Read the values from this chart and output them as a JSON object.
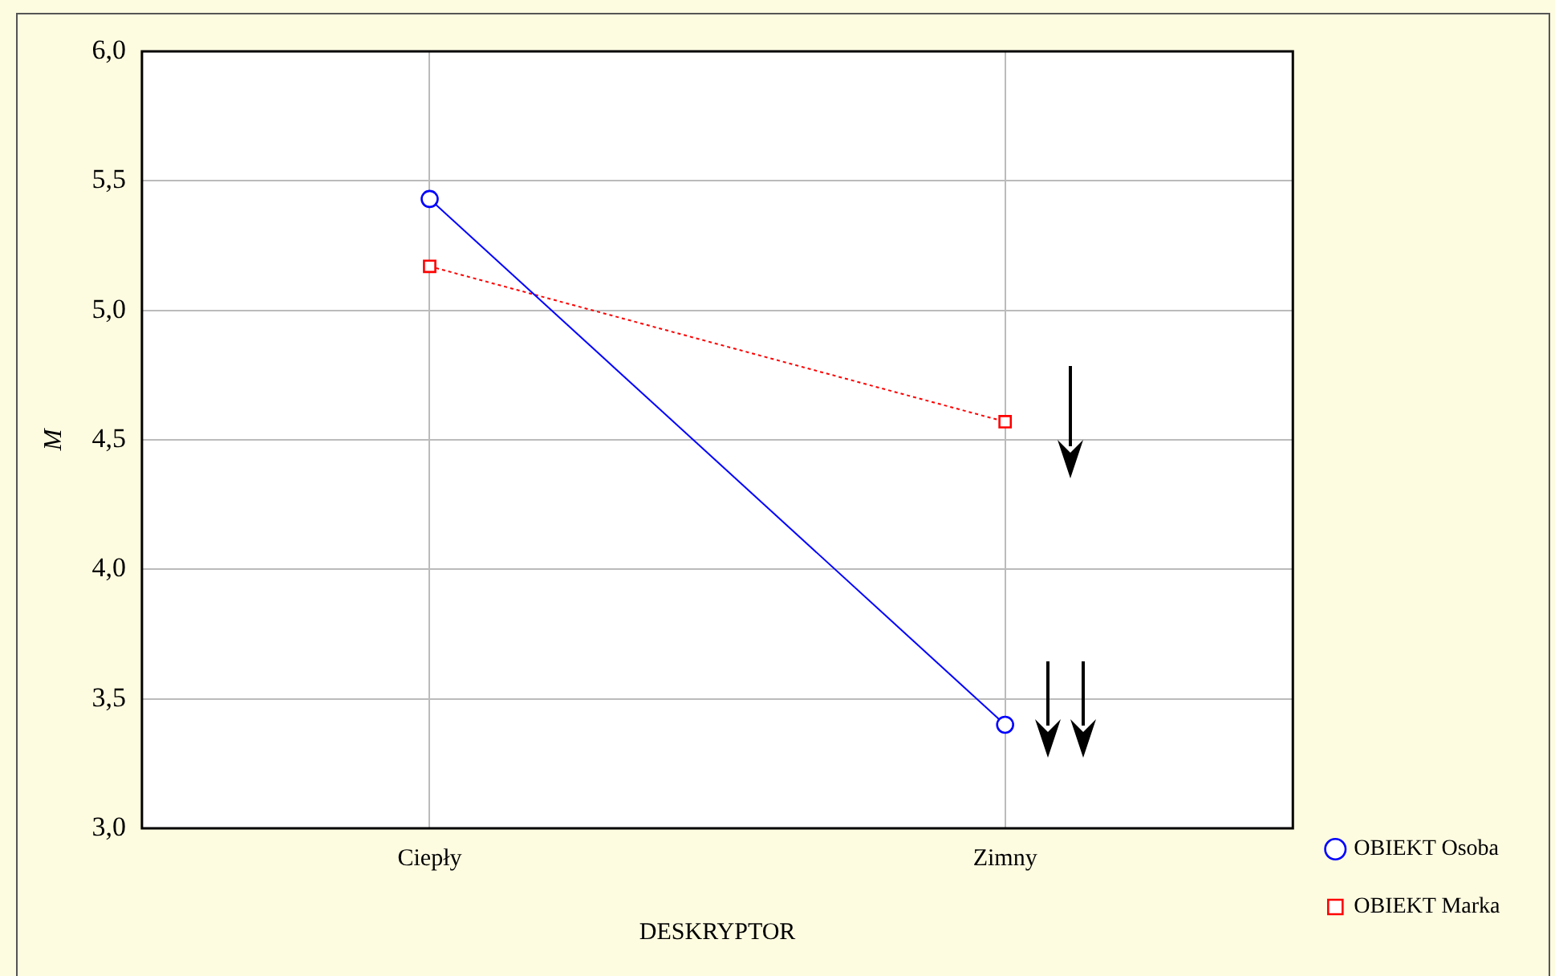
{
  "chart_data": {
    "type": "line",
    "xlabel": "DESKRYPTOR",
    "ylabel": "M",
    "categories": [
      "Ciepły",
      "Zimny"
    ],
    "series": [
      {
        "name": "OBIEKT Osoba",
        "color": "#0000ff",
        "values": [
          5.43,
          3.4
        ],
        "marker": "circle",
        "line_style": "solid"
      },
      {
        "name": "OBIEKT Marka",
        "color": "#ff0000",
        "values": [
          5.17,
          4.57
        ],
        "marker": "square",
        "line_style": "dotted"
      }
    ],
    "ylim": [
      3,
      6
    ],
    "yticks": [
      {
        "value": 3,
        "label": "3,0"
      },
      {
        "value": 3.5,
        "label": "3,5"
      },
      {
        "value": 4,
        "label": "4,0"
      },
      {
        "value": 4.5,
        "label": "4,5"
      },
      {
        "value": 5,
        "label": "5,0"
      },
      {
        "value": 5.5,
        "label": "5,5"
      },
      {
        "value": 6,
        "label": "6,0"
      }
    ],
    "grid": true,
    "legend": "right"
  }
}
